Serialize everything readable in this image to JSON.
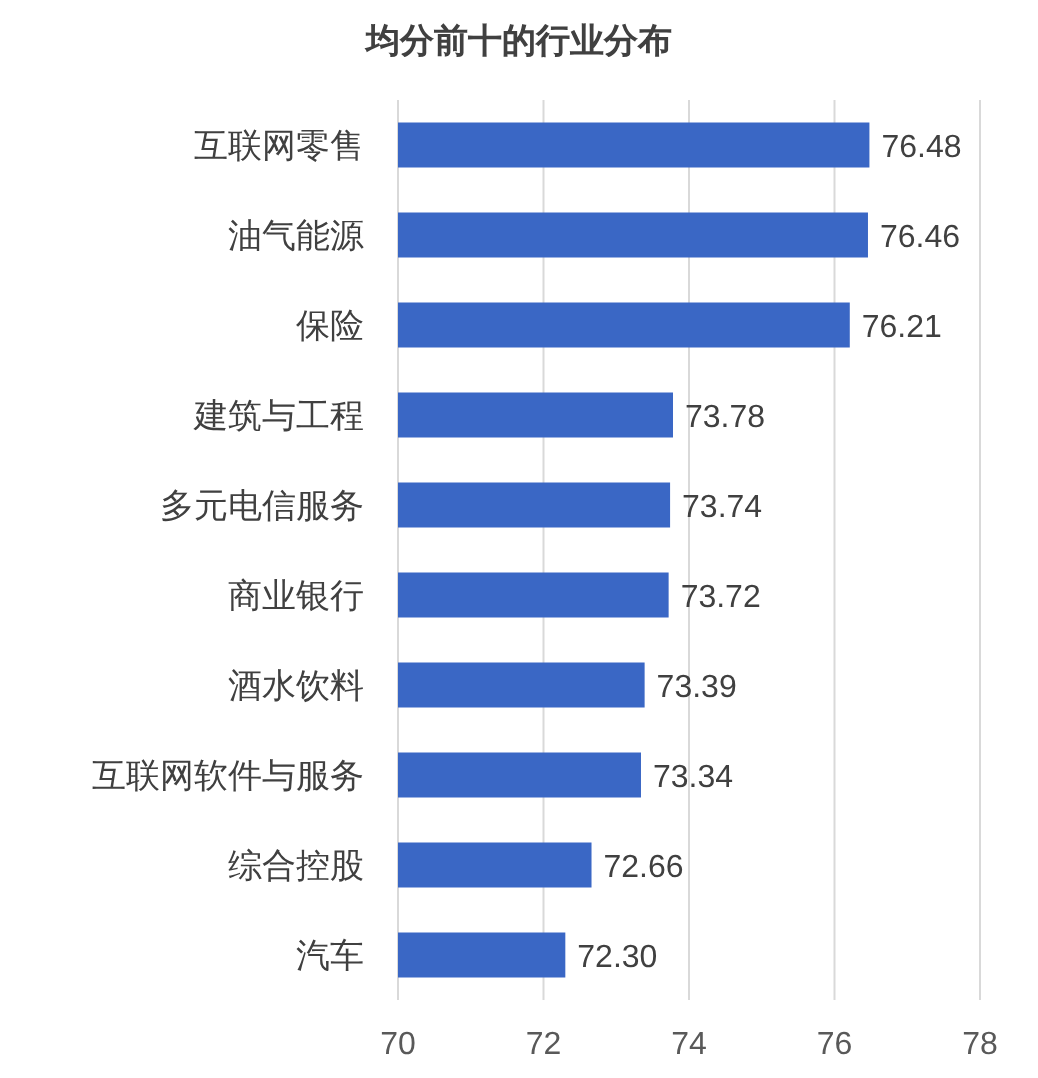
{
  "chart_data": {
    "type": "bar",
    "orientation": "horizontal",
    "title": "均分前十的行业分布",
    "categories": [
      "互联网零售",
      "油气能源",
      "保险",
      "建筑与工程",
      "多元电信服务",
      "商业银行",
      "酒水饮料",
      "互联网软件与服务",
      "综合控股",
      "汽车"
    ],
    "values": [
      76.48,
      76.46,
      76.21,
      73.78,
      73.74,
      73.72,
      73.39,
      73.34,
      72.66,
      72.3
    ],
    "value_labels": [
      "76.48",
      "76.46",
      "76.21",
      "73.78",
      "73.74",
      "73.72",
      "73.39",
      "73.34",
      "72.66",
      "72.30"
    ],
    "color": "#3a67c5",
    "xlim": [
      70,
      78
    ],
    "xticks": [
      70,
      72,
      74,
      76,
      78
    ],
    "grid": "x"
  }
}
